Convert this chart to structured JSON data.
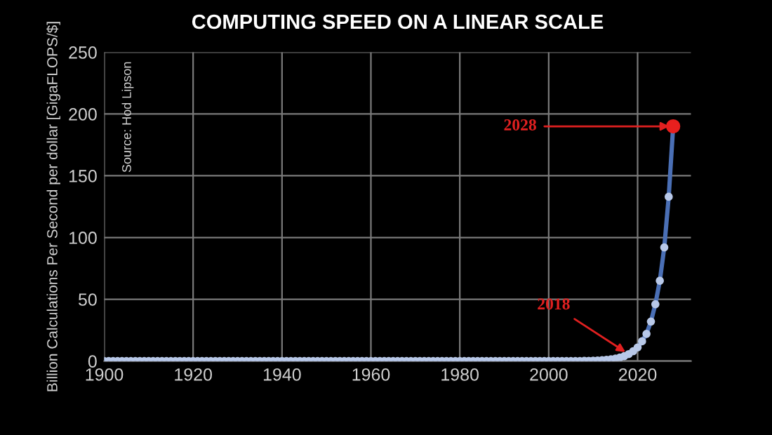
{
  "chart_data": {
    "type": "line",
    "title": "COMPUTING SPEED ON A LINEAR SCALE",
    "ylabel": "Billion Calculations Per Second per dollar [GigaFLOPS/$]",
    "xlim": [
      1900,
      2032
    ],
    "xticks": [
      1900,
      1920,
      1940,
      1960,
      1980,
      2000,
      2020
    ],
    "ylim": [
      0,
      250
    ],
    "yticks": [
      0,
      50,
      100,
      150,
      200,
      250
    ],
    "grid": true,
    "marker": "circle",
    "line_style": "solid",
    "annotations": [
      "Source: Hod Lipson",
      {
        "text": "2018",
        "x": 2018,
        "y": 5.6
      },
      {
        "text": "2028",
        "x": 2028,
        "y": 190
      }
    ],
    "series": [
      {
        "color": "#4a6fb5",
        "x": [
          1900,
          1901,
          1902,
          1903,
          1904,
          1905,
          1906,
          1907,
          1908,
          1909,
          1910,
          1911,
          1912,
          1913,
          1914,
          1915,
          1916,
          1917,
          1918,
          1919,
          1920,
          1921,
          1922,
          1923,
          1924,
          1925,
          1926,
          1927,
          1928,
          1929,
          1930,
          1931,
          1932,
          1933,
          1934,
          1935,
          1936,
          1937,
          1938,
          1939,
          1940,
          1941,
          1942,
          1943,
          1944,
          1945,
          1946,
          1947,
          1948,
          1949,
          1950,
          1951,
          1952,
          1953,
          1954,
          1955,
          1956,
          1957,
          1958,
          1959,
          1960,
          1961,
          1962,
          1963,
          1964,
          1965,
          1966,
          1967,
          1968,
          1969,
          1970,
          1971,
          1972,
          1973,
          1974,
          1975,
          1976,
          1977,
          1978,
          1979,
          1980,
          1981,
          1982,
          1983,
          1984,
          1985,
          1986,
          1987,
          1988,
          1989,
          1990,
          1991,
          1992,
          1993,
          1994,
          1995,
          1996,
          1997,
          1998,
          1999,
          2000,
          2001,
          2002,
          2003,
          2004,
          2005,
          2006,
          2007,
          2008,
          2009,
          2010,
          2011,
          2012,
          2013,
          2014,
          2015,
          2016,
          2017,
          2018,
          2019,
          2020,
          2021,
          2022,
          2023,
          2024,
          2025,
          2026,
          2027,
          2028
        ],
        "values": [
          0,
          0,
          0,
          0,
          0,
          0,
          0,
          0,
          0,
          0,
          0,
          0,
          0,
          0,
          0,
          0,
          0,
          0,
          0,
          0,
          0,
          0,
          0,
          0,
          0,
          0,
          0,
          0,
          0,
          0,
          0,
          0,
          0,
          0,
          0,
          0,
          0,
          0,
          0,
          0,
          0,
          0,
          0,
          0,
          0,
          0,
          0,
          0,
          0,
          0,
          0,
          0,
          0,
          0,
          0,
          0,
          0,
          0,
          0,
          0,
          0,
          0,
          0,
          0,
          0,
          0,
          0,
          0,
          0,
          0,
          0,
          0,
          0,
          0,
          0,
          0,
          0,
          0,
          0,
          0,
          0,
          0,
          0,
          0,
          0,
          0,
          0,
          0,
          0,
          0,
          0,
          0,
          0,
          0,
          0,
          0,
          0,
          0,
          0,
          0,
          0,
          0,
          0,
          0,
          0,
          0,
          0,
          0,
          0.1,
          0.2,
          0.3,
          0.5,
          0.7,
          1,
          1.4,
          2,
          2.8,
          4,
          5.6,
          8,
          11,
          16,
          22,
          32,
          46,
          65,
          92,
          133,
          190
        ]
      },
      {
        "type": "scatter",
        "color": "#e8201e",
        "x": [
          2028
        ],
        "values": [
          190
        ]
      }
    ]
  }
}
